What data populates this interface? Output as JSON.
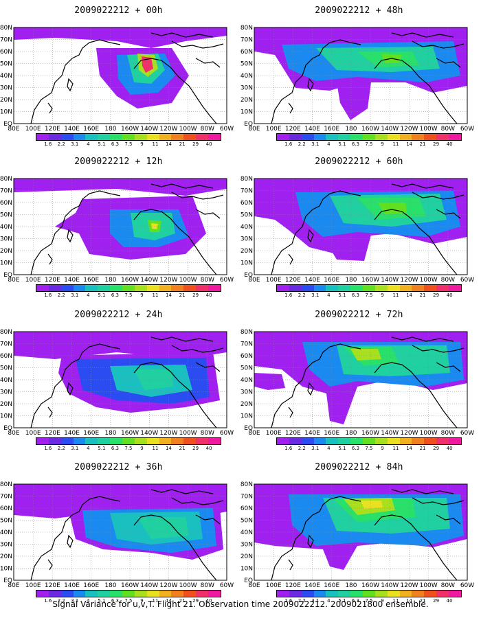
{
  "panels": [
    {
      "title": "2009022212 + 00h"
    },
    {
      "title": "2009022212 + 48h"
    },
    {
      "title": "2009022212 + 12h"
    },
    {
      "title": "2009022212 + 60h"
    },
    {
      "title": "2009022212 + 24h"
    },
    {
      "title": "2009022212 + 72h"
    },
    {
      "title": "2009022212 + 36h"
    },
    {
      "title": "2009022212 + 84h"
    }
  ],
  "lat_labels": [
    "80N",
    "70N",
    "60N",
    "50N",
    "40N",
    "30N",
    "20N",
    "10N",
    "EQ"
  ],
  "lon_labels": [
    "80E",
    "100E",
    "120E",
    "140E",
    "160E",
    "180",
    "160W",
    "140W",
    "120W",
    "100W",
    "80W",
    "60W"
  ],
  "colorbar": {
    "colors": [
      "#a020f0",
      "#6a2be0",
      "#2b4cf0",
      "#1a8af0",
      "#1ac0c0",
      "#20d0a0",
      "#28e06a",
      "#60e020",
      "#a8e020",
      "#e8e020",
      "#f0b020",
      "#f08020",
      "#f05020",
      "#f0306a",
      "#f01aa0"
    ],
    "labels": [
      "1.6",
      "2.2",
      "3.1",
      "4",
      "5.1",
      "6.3",
      "7.5",
      "9",
      "11",
      "14",
      "21",
      "29",
      "40"
    ]
  },
  "footer": "Signal Variance for u,v,T. Flight 21. Observation time 2009022212. 2009021800 ensemble."
}
